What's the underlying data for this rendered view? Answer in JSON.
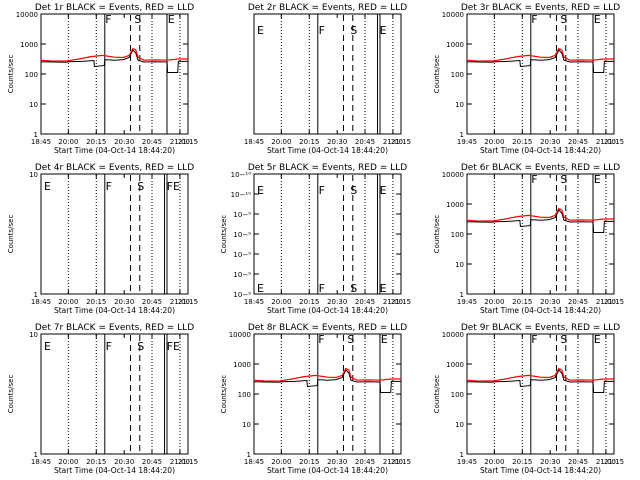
{
  "chart_data": [
    {
      "type": "line",
      "title": "Det 1r BLACK = Events, RED = LLD",
      "scale": "log",
      "ylim": [
        1,
        10000
      ],
      "ylabel": "Counts/sec",
      "xlabel": "Start Time (04-Oct-14 18:44:20)",
      "xtick_labels": [
        "18:45",
        "20:00",
        "20:15",
        "20:30",
        "20:45",
        "21:00",
        "21:15"
      ],
      "ytick_labels": [
        "1",
        "10",
        "100",
        "1000",
        "10000"
      ],
      "markers": [
        "F",
        "S",
        "E"
      ],
      "has_data": true,
      "series": [
        {
          "name": "Events",
          "color": "#000000"
        },
        {
          "name": "LLD",
          "color": "#ff0000"
        }
      ]
    },
    {
      "type": "line",
      "title": "Det 2r BLACK = Events, RED = LLD",
      "scale": "log",
      "ylim": [
        1,
        10000
      ],
      "ylabel": "",
      "xlabel": "Start Time (04-Oct-14 18:44:20)",
      "xtick_labels": [
        "18:45",
        "20:00",
        "20:15",
        "20:30",
        "20:45",
        "21:00",
        "21:15"
      ],
      "ytick_labels": [],
      "markers": [
        "E",
        "F",
        "S",
        "E"
      ],
      "has_data": false
    },
    {
      "type": "line",
      "title": "Det 3r BLACK = Events, RED = LLD",
      "scale": "log",
      "ylim": [
        1,
        10000
      ],
      "ylabel": "Counts/sec",
      "xlabel": "Start Time (04-Oct-14 18:44:20)",
      "xtick_labels": [
        "19:45",
        "20:00",
        "20:15",
        "20:30",
        "20:45",
        "21:00",
        "21:15"
      ],
      "ytick_labels": [
        "1",
        "10",
        "100",
        "1000",
        "10000"
      ],
      "markers": [
        "F",
        "S",
        "E"
      ],
      "has_data": true,
      "series": [
        {
          "name": "Events",
          "color": "#000000"
        },
        {
          "name": "LLD",
          "color": "#ff0000"
        }
      ]
    },
    {
      "type": "line",
      "title": "Det 4r BLACK = Events, RED = LLD",
      "scale": "log",
      "ylim": [
        1,
        10
      ],
      "ylabel": "Counts/sec",
      "xlabel": "Start Time (04-Oct-14 18:44:20)",
      "xtick_labels": [
        "18:45",
        "20:00",
        "20:15",
        "20:30",
        "20:45",
        "21:00",
        "21:15"
      ],
      "ytick_labels": [
        "1",
        "10"
      ],
      "markers": [
        "E",
        "F",
        "S",
        "FE"
      ],
      "has_data": false
    },
    {
      "type": "line",
      "title": "Det 5r BLACK = Events, RED = LLD",
      "scale": "log",
      "ylim": [
        "1e-10",
        "1e-9"
      ],
      "ylabel": "Counts/sec",
      "xlabel": "Start Time (04-Oct-14 18:44:20)",
      "xtick_labels": [
        "18:45",
        "20:00",
        "20:15",
        "20:30",
        "20:45",
        "21:00",
        "21:15"
      ],
      "ytick_labels": [
        "10−⁹",
        "10−⁹",
        "10−⁹",
        "10−⁹",
        "10−⁹",
        "10−¹⁰",
        "10−¹⁰"
      ],
      "markers": [
        "E",
        "F",
        "S",
        "E"
      ],
      "has_data": false
    },
    {
      "type": "line",
      "title": "Det 6r BLACK = Events, RED = LLD",
      "scale": "log",
      "ylim": [
        1,
        10000
      ],
      "ylabel": "Counts/sec",
      "xlabel": "Start Time (04-Oct-14 18:44:20)",
      "xtick_labels": [
        "19:45",
        "20:00",
        "20:15",
        "20:30",
        "20:45",
        "21:00",
        "21:15"
      ],
      "ytick_labels": [
        "1",
        "10",
        "100",
        "1000",
        "10000"
      ],
      "markers": [
        "F",
        "S",
        "E"
      ],
      "has_data": true,
      "series": [
        {
          "name": "Events",
          "color": "#000000"
        },
        {
          "name": "LLD",
          "color": "#ff0000"
        }
      ]
    },
    {
      "type": "line",
      "title": "Det 7r BLACK = Events, RED = LLD",
      "scale": "log",
      "ylim": [
        1,
        10
      ],
      "ylabel": "Counts/sec",
      "xlabel": "Start Time (04-Oct-14 18:44:20)",
      "xtick_labels": [
        "18:45",
        "20:00",
        "20:15",
        "20:30",
        "20:45",
        "21:00",
        "21:15"
      ],
      "ytick_labels": [
        "1",
        "10"
      ],
      "markers": [
        "E",
        "F",
        "S",
        "FE"
      ],
      "has_data": false
    },
    {
      "type": "line",
      "title": "Det 8r BLACK = Events, RED = LLD",
      "scale": "log",
      "ylim": [
        1,
        10000
      ],
      "ylabel": "Counts/sec",
      "xlabel": "Start Time (04-Oct-14 18:44:20)",
      "xtick_labels": [
        "18:45",
        "20:00",
        "20:15",
        "20:30",
        "20:45",
        "21:00",
        "21:15"
      ],
      "ytick_labels": [
        "1",
        "10",
        "100",
        "1000",
        "10000"
      ],
      "markers": [
        "F",
        "S",
        "E"
      ],
      "has_data": true,
      "series": [
        {
          "name": "Events",
          "color": "#000000"
        },
        {
          "name": "LLD",
          "color": "#ff0000"
        }
      ]
    },
    {
      "type": "line",
      "title": "Det 9r BLACK = Events, RED = LLD",
      "scale": "log",
      "ylim": [
        1,
        10000
      ],
      "ylabel": "Counts/sec",
      "xlabel": "Start Time (04-Oct-14 18:44:20)",
      "xtick_labels": [
        "19:45",
        "20:00",
        "20:15",
        "20:30",
        "20:45",
        "21:00",
        "21:15"
      ],
      "ytick_labels": [
        "1",
        "10",
        "100",
        "1000",
        "10000"
      ],
      "markers": [
        "F",
        "S",
        "E"
      ],
      "has_data": true,
      "series": [
        {
          "name": "Events",
          "color": "#000000"
        },
        {
          "name": "LLD",
          "color": "#ff0000"
        }
      ]
    }
  ]
}
